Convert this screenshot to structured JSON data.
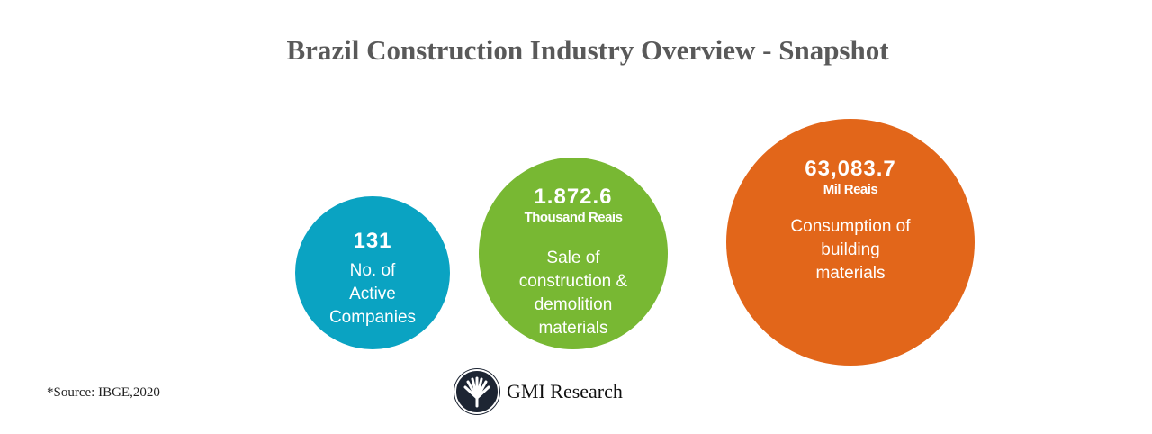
{
  "title": "Brazil Construction Industry Overview - Snapshot",
  "stats": [
    {
      "value": "131",
      "unit": "",
      "desc": [
        "No. of",
        "Active",
        "Companies"
      ],
      "color": "#0aa3c2"
    },
    {
      "value": "1.872.6",
      "unit": "Thousand Reais",
      "desc": [
        "Sale of",
        "construction &",
        "demolition",
        "materials"
      ],
      "color": "#78b833"
    },
    {
      "value": "63,083.7",
      "unit": "Mil Reais",
      "desc": [
        "Consumption of",
        "building",
        "materials"
      ],
      "color": "#e2661a"
    }
  ],
  "source": "*Source:  IBGE,2020",
  "logo": {
    "name": "GMI Research",
    "icon": "fan-leaf-logo-icon"
  }
}
